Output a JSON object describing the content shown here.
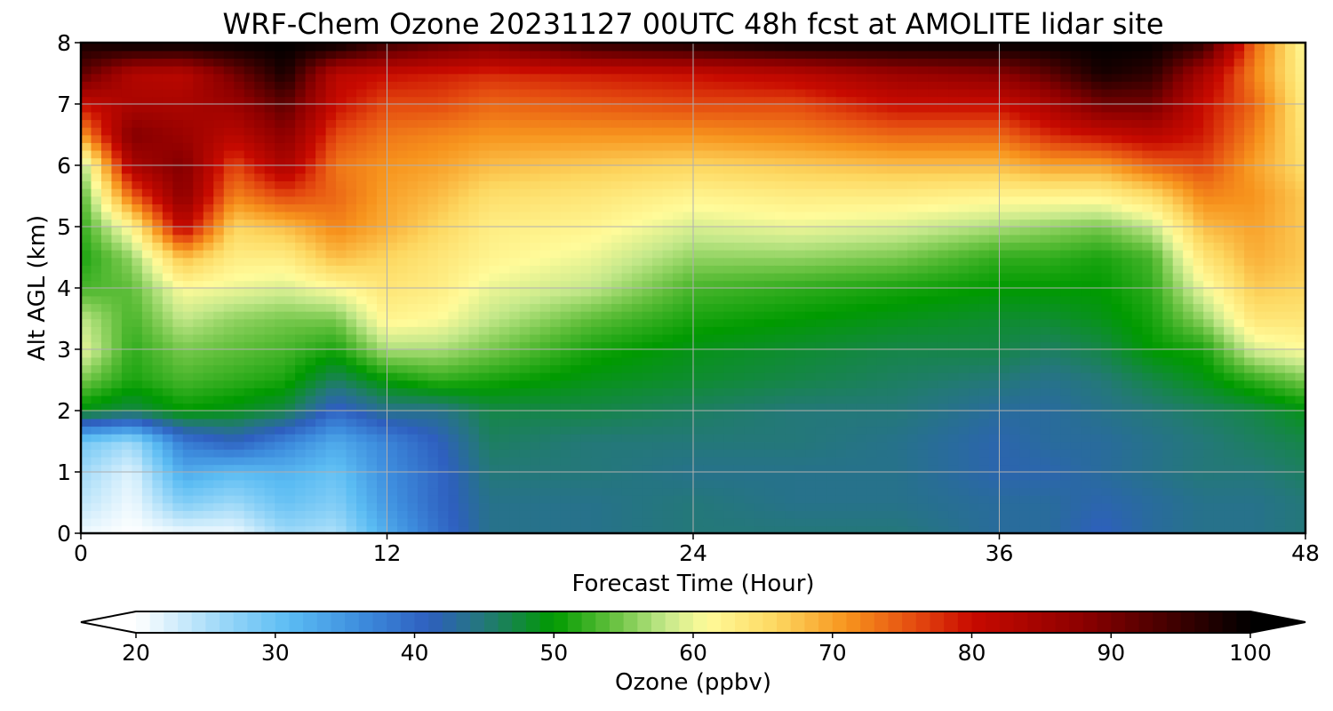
{
  "chart_data": {
    "type": "heatmap",
    "title": "WRF-Chem Ozone  20231127 00UTC 48h fcst at AMOLITE lidar site",
    "xlabel": "Forecast Time (Hour)",
    "ylabel": "Alt AGL (km)",
    "xlim": [
      0,
      48
    ],
    "ylim": [
      0,
      8
    ],
    "xticks": [
      0,
      12,
      24,
      36,
      48
    ],
    "yticks": [
      0,
      1,
      2,
      3,
      4,
      5,
      6,
      7,
      8
    ],
    "grid": true,
    "colorbar": {
      "label": "Ozone  (ppbv)",
      "min": 20,
      "max": 100,
      "ticks": [
        20,
        30,
        40,
        50,
        60,
        70,
        80,
        90,
        100
      ],
      "extend": "both",
      "stops": [
        {
          "v": 20,
          "c": "#ffffff"
        },
        {
          "v": 27,
          "c": "#8fd3f7"
        },
        {
          "v": 31,
          "c": "#5bbcf3"
        },
        {
          "v": 36,
          "c": "#3e8ede"
        },
        {
          "v": 41,
          "c": "#2e5fbf"
        },
        {
          "v": 45,
          "c": "#247879"
        },
        {
          "v": 50,
          "c": "#009a00"
        },
        {
          "v": 54,
          "c": "#5fbe3a"
        },
        {
          "v": 58,
          "c": "#c4e88a"
        },
        {
          "v": 61,
          "c": "#fffb9a"
        },
        {
          "v": 66,
          "c": "#fdd760"
        },
        {
          "v": 71,
          "c": "#f7941d"
        },
        {
          "v": 76,
          "c": "#e44a10"
        },
        {
          "v": 80,
          "c": "#c80a00"
        },
        {
          "v": 88,
          "c": "#8c0000"
        },
        {
          "v": 95,
          "c": "#3a0000"
        },
        {
          "v": 100,
          "c": "#000000"
        }
      ]
    },
    "altitudes_km": [
      0,
      0.5,
      1,
      1.5,
      2,
      2.5,
      3,
      3.5,
      4,
      4.5,
      5,
      5.5,
      6,
      6.5,
      7,
      7.5,
      8
    ],
    "series": [
      {
        "name": "0",
        "values": [
          21,
          24,
          26,
          29,
          49,
          55,
          60,
          58,
          53,
          51,
          52,
          53,
          56,
          70,
          80,
          92,
          98
        ]
      },
      {
        "name": "2",
        "values": [
          20,
          21,
          22,
          26,
          47,
          51,
          52,
          53,
          54,
          56,
          62,
          74,
          84,
          89,
          84,
          83,
          100
        ]
      },
      {
        "name": "4",
        "values": [
          21,
          28,
          33,
          38,
          50,
          53,
          55,
          58,
          61,
          68,
          82,
          88,
          89,
          86,
          84,
          82,
          100
        ]
      },
      {
        "name": "6",
        "values": [
          21,
          26,
          31,
          41,
          49,
          52,
          54,
          56,
          60,
          63,
          66,
          72,
          76,
          82,
          86,
          90,
          100
        ]
      },
      {
        "name": "8",
        "values": [
          26,
          30,
          32,
          37,
          47,
          51,
          53,
          55,
          59,
          63,
          68,
          76,
          84,
          88,
          92,
          98,
          100
        ]
      },
      {
        "name": "10",
        "values": [
          25,
          28,
          30,
          33,
          40,
          46,
          51,
          55,
          61,
          68,
          72,
          74,
          73,
          76,
          80,
          82,
          100
        ]
      },
      {
        "name": "12",
        "values": [
          33,
          35,
          36,
          37,
          44,
          50,
          57,
          62,
          64,
          66,
          69,
          70,
          71,
          73,
          76,
          80,
          95
        ]
      },
      {
        "name": "14",
        "values": [
          39,
          40,
          40,
          41,
          44,
          52,
          57,
          61,
          63,
          64,
          66,
          68,
          70,
          72,
          76,
          79,
          92
        ]
      },
      {
        "name": "16",
        "values": [
          44,
          44,
          45,
          46,
          47,
          51,
          55,
          58,
          60,
          62,
          63,
          65,
          68,
          71,
          74,
          78,
          90
        ]
      },
      {
        "name": "20",
        "values": [
          44,
          44,
          45,
          45,
          47,
          49,
          51,
          54,
          58,
          60,
          62,
          64,
          67,
          71,
          75,
          79,
          96
        ]
      },
      {
        "name": "24",
        "values": [
          45,
          45,
          44,
          45,
          46,
          48,
          49,
          51,
          53,
          56,
          59,
          62,
          66,
          71,
          76,
          80,
          98
        ]
      },
      {
        "name": "28",
        "values": [
          45,
          44,
          44,
          45,
          45,
          47,
          48,
          50,
          52,
          56,
          60,
          63,
          67,
          72,
          76,
          82,
          100
        ]
      },
      {
        "name": "32",
        "values": [
          45,
          44,
          44,
          44,
          45,
          46,
          47,
          49,
          51,
          55,
          59,
          63,
          68,
          74,
          80,
          86,
          100
        ]
      },
      {
        "name": "36",
        "values": [
          43,
          43,
          42,
          42,
          43,
          45,
          47,
          48,
          50,
          52,
          57,
          62,
          68,
          74,
          80,
          88,
          100
        ]
      },
      {
        "name": "38",
        "values": [
          43,
          43,
          42,
          43,
          43,
          44,
          46,
          48,
          50,
          52,
          56,
          62,
          70,
          78,
          84,
          92,
          100
        ]
      },
      {
        "name": "40",
        "values": [
          41,
          42,
          43,
          43,
          44,
          45,
          47,
          49,
          50,
          51,
          55,
          62,
          70,
          80,
          90,
          98,
          100
        ]
      },
      {
        "name": "42",
        "values": [
          43,
          43,
          44,
          44,
          45,
          47,
          50,
          51,
          52,
          53,
          58,
          65,
          74,
          82,
          90,
          96,
          100
        ]
      },
      {
        "name": "44",
        "values": [
          44,
          44,
          45,
          45,
          46,
          49,
          51,
          56,
          60,
          64,
          68,
          72,
          76,
          79,
          80,
          84,
          96
        ]
      },
      {
        "name": "46",
        "values": [
          44,
          44,
          45,
          46,
          47,
          52,
          59,
          64,
          67,
          69,
          70,
          71,
          70,
          72,
          74,
          72,
          74
        ]
      },
      {
        "name": "48",
        "values": [
          45,
          45,
          46,
          47,
          49,
          55,
          61,
          64,
          66,
          67,
          67,
          67,
          65,
          64,
          63,
          62,
          61
        ]
      }
    ]
  }
}
